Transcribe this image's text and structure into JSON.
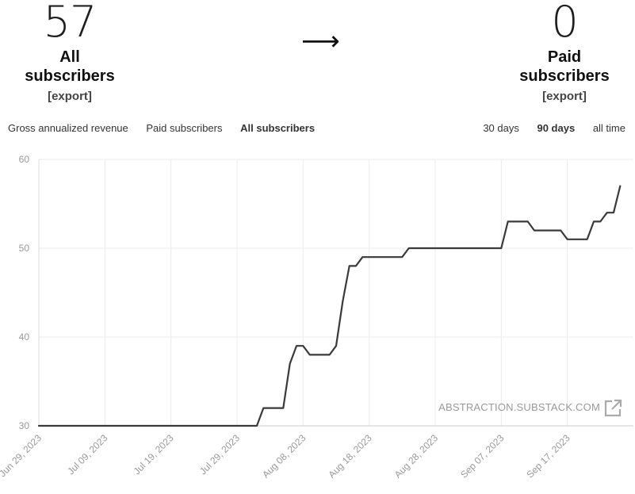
{
  "stats": {
    "all": {
      "value": "57",
      "label": "All subscribers",
      "export": "[export]"
    },
    "arrow": "⟶",
    "paid": {
      "value": "0",
      "label": "Paid subscribers",
      "export": "[export]"
    }
  },
  "tabs": [
    {
      "label": "Gross annualized revenue",
      "active": false
    },
    {
      "label": "Paid subscribers",
      "active": false
    },
    {
      "label": "All subscribers",
      "active": true
    }
  ],
  "ranges": [
    {
      "label": "30 days",
      "active": false
    },
    {
      "label": "90 days",
      "active": true
    },
    {
      "label": "all time",
      "active": false
    }
  ],
  "chart_data": {
    "type": "line",
    "y_ticks": [
      "60",
      "50",
      "40",
      "30"
    ],
    "x_ticks": [
      "Jun 29, 2023",
      "Jul 09, 2023",
      "Jul 19, 2023",
      "Jul 29, 2023",
      "Aug 08, 2023",
      "Aug 18, 2023",
      "Aug 28, 2023",
      "Sep 07, 2023",
      "Sep 17, 2023"
    ],
    "ylim": [
      30,
      60
    ],
    "xlim": [
      "2023-06-29",
      "2023-09-27"
    ],
    "grid": true,
    "line_color": "#3a3a3a",
    "watermark": "ABSTRACTION.SUBSTACK.COM",
    "series": [
      {
        "points": [
          [
            "2023-06-29",
            30
          ],
          [
            "2023-08-01",
            30
          ],
          [
            "2023-08-02",
            32
          ],
          [
            "2023-08-05",
            32
          ],
          [
            "2023-08-06",
            37
          ],
          [
            "2023-08-07",
            39
          ],
          [
            "2023-08-08",
            39
          ],
          [
            "2023-08-09",
            38
          ],
          [
            "2023-08-12",
            38
          ],
          [
            "2023-08-13",
            39
          ],
          [
            "2023-08-14",
            44
          ],
          [
            "2023-08-15",
            48
          ],
          [
            "2023-08-16",
            48
          ],
          [
            "2023-08-17",
            49
          ],
          [
            "2023-08-23",
            49
          ],
          [
            "2023-08-24",
            50
          ],
          [
            "2023-09-07",
            50
          ],
          [
            "2023-09-08",
            53
          ],
          [
            "2023-09-11",
            53
          ],
          [
            "2023-09-12",
            52
          ],
          [
            "2023-09-16",
            52
          ],
          [
            "2023-09-17",
            51
          ],
          [
            "2023-09-20",
            51
          ],
          [
            "2023-09-21",
            53
          ],
          [
            "2023-09-22",
            53
          ],
          [
            "2023-09-23",
            54
          ],
          [
            "2023-09-24",
            54
          ],
          [
            "2023-09-25",
            57
          ]
        ]
      }
    ]
  }
}
